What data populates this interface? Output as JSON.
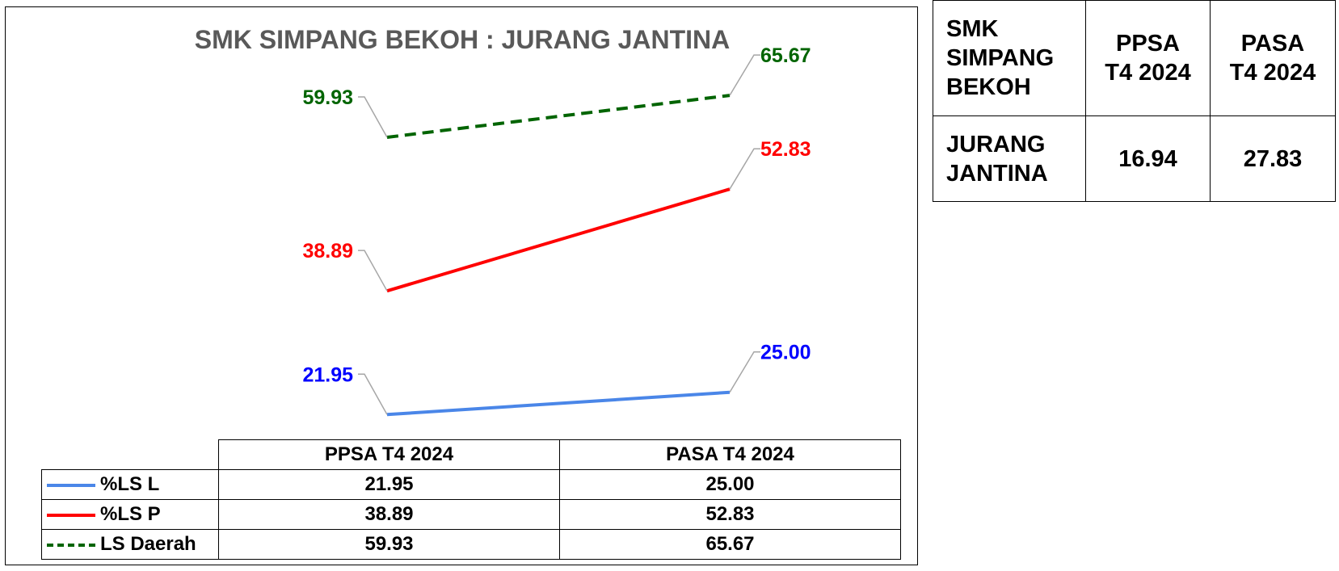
{
  "chart_data": {
    "type": "line",
    "title": "SMK SIMPANG BEKOH : JURANG JANTINA",
    "categories": [
      "PPSA T4 2024",
      "PASA T4 2024"
    ],
    "series": [
      {
        "name": "%LS L",
        "values": [
          21.95,
          25.0
        ],
        "labels": [
          "21.95",
          "25.00"
        ],
        "color": "#4a86e8",
        "dash": false
      },
      {
        "name": "%LS P",
        "values": [
          38.89,
          52.83
        ],
        "labels": [
          "38.89",
          "52.83"
        ],
        "color": "#ff0000",
        "dash": false
      },
      {
        "name": "LS Daerah",
        "values": [
          59.93,
          65.67
        ],
        "labels": [
          "59.93",
          "65.67"
        ],
        "color": "#006400",
        "dash": true
      }
    ],
    "label_colors": [
      "#0000ff",
      "#ff0000",
      "#006400"
    ],
    "ylim": [
      18,
      70
    ],
    "grid": false,
    "legend": "data-table"
  },
  "side_table": {
    "corner_label": [
      "SMK",
      "SIMPANG",
      "BEKOH"
    ],
    "columns": [
      [
        "PPSA",
        "T4 2024"
      ],
      [
        "PASA",
        "T4 2024"
      ]
    ],
    "row_label": [
      "JURANG",
      "JANTINA"
    ],
    "values": [
      "16.94",
      "27.83"
    ]
  }
}
